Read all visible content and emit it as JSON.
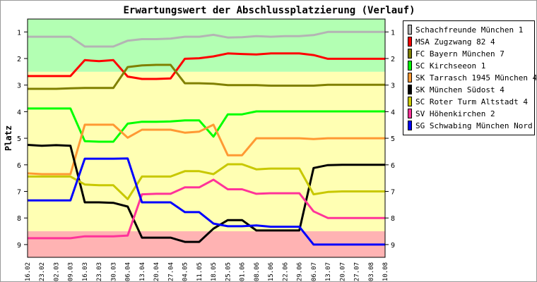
{
  "chart_data": {
    "type": "line",
    "title": "Erwartungswert der Abschlussplatzierung (Verlauf)",
    "xlabel": "",
    "ylabel": "Platz",
    "ylim": [
      1,
      9
    ],
    "y_inverted": true,
    "yticks": [
      1,
      2,
      3,
      4,
      5,
      6,
      7,
      8,
      9
    ],
    "grid": false,
    "legend_position": "right",
    "bands": [
      {
        "from": 0.5,
        "to": 2.5,
        "color": "#b3ffb3"
      },
      {
        "from": 2.5,
        "to": 8.5,
        "color": "#ffffb3"
      },
      {
        "from": 8.5,
        "to": 9.5,
        "color": "#ffb3b3"
      }
    ],
    "categories": [
      "16.02",
      "23.02",
      "02.03",
      "09.03",
      "16.03",
      "23.03",
      "30.03",
      "06.04",
      "13.04",
      "20.04",
      "27.04",
      "04.05",
      "11.05",
      "18.05",
      "25.05",
      "01.06",
      "08.06",
      "15.06",
      "22.06",
      "29.06",
      "06.07",
      "13.07",
      "20.07",
      "27.07",
      "03.08",
      "10.08"
    ],
    "series": [
      {
        "name": "Schachfreunde München 1",
        "color": "#b4b4b4",
        "values": [
          1.18,
          1.18,
          1.18,
          1.18,
          1.55,
          1.55,
          1.55,
          1.33,
          1.27,
          1.27,
          1.25,
          1.18,
          1.18,
          1.11,
          1.21,
          1.2,
          1.16,
          1.18,
          1.16,
          1.16,
          1.12,
          1.0,
          1.0,
          1.0,
          1.0,
          1.0
        ]
      },
      {
        "name": "MSA Zugzwang 82 4",
        "color": "#ff0000",
        "values": [
          2.66,
          2.66,
          2.66,
          2.66,
          2.06,
          2.1,
          2.06,
          2.68,
          2.77,
          2.77,
          2.75,
          2.01,
          1.99,
          1.92,
          1.81,
          1.83,
          1.85,
          1.81,
          1.81,
          1.81,
          1.87,
          2.01,
          2.01,
          2.01,
          2.01,
          2.01
        ]
      },
      {
        "name": "FC Bayern München 7",
        "color": "#808000",
        "values": [
          3.14,
          3.14,
          3.14,
          3.12,
          3.11,
          3.11,
          3.11,
          2.32,
          2.26,
          2.24,
          2.24,
          2.93,
          2.93,
          2.95,
          3.0,
          3.0,
          3.0,
          3.02,
          3.02,
          3.02,
          3.02,
          2.99,
          2.99,
          2.99,
          2.99,
          2.99
        ]
      },
      {
        "name": "SC Kirchseeon 1",
        "color": "#00ff00",
        "values": [
          3.88,
          3.88,
          3.88,
          3.88,
          5.11,
          5.13,
          5.13,
          4.45,
          4.38,
          4.38,
          4.37,
          4.33,
          4.33,
          4.94,
          4.1,
          4.1,
          3.99,
          3.99,
          3.99,
          3.99,
          3.99,
          3.99,
          3.99,
          3.99,
          3.99,
          3.99
        ]
      },
      {
        "name": "SK Tarrasch 1945 München 4",
        "color": "#ff9933",
        "values": [
          6.32,
          6.35,
          6.35,
          6.35,
          4.49,
          4.49,
          4.49,
          4.98,
          4.68,
          4.68,
          4.68,
          4.79,
          4.75,
          4.49,
          5.64,
          5.64,
          5.0,
          5.0,
          5.0,
          5.0,
          5.03,
          5.0,
          5.0,
          5.0,
          5.0,
          5.0
        ]
      },
      {
        "name": "SK München Südost 4",
        "color": "#000000",
        "values": [
          5.25,
          5.28,
          5.26,
          5.28,
          7.41,
          7.41,
          7.43,
          7.57,
          8.74,
          8.74,
          8.74,
          8.9,
          8.9,
          8.4,
          8.08,
          8.08,
          8.47,
          8.47,
          8.47,
          8.47,
          6.12,
          6.01,
          6.0,
          6.0,
          6.0,
          6.0
        ]
      },
      {
        "name": "SC Roter Turm Altstadt 4",
        "color": "#c8c800",
        "values": [
          6.44,
          6.44,
          6.44,
          6.44,
          6.74,
          6.77,
          6.77,
          7.29,
          6.44,
          6.44,
          6.44,
          6.24,
          6.24,
          6.35,
          5.98,
          5.98,
          6.17,
          6.14,
          6.14,
          6.14,
          7.11,
          7.02,
          7.0,
          7.0,
          7.0,
          7.0
        ]
      },
      {
        "name": "SV Höhenkirchen 2",
        "color": "#ff3399",
        "values": [
          8.76,
          8.76,
          8.76,
          8.76,
          8.69,
          8.69,
          8.69,
          8.66,
          7.11,
          7.09,
          7.09,
          6.85,
          6.85,
          6.56,
          6.92,
          6.92,
          7.09,
          7.07,
          7.07,
          7.07,
          7.75,
          8.0,
          8.0,
          8.0,
          8.0,
          8.0
        ]
      },
      {
        "name": "SG Schwabing München Nord 2",
        "color": "#0000ff",
        "values": [
          7.34,
          7.34,
          7.34,
          7.34,
          5.77,
          5.77,
          5.77,
          5.76,
          7.41,
          7.41,
          7.41,
          7.78,
          7.78,
          8.21,
          8.31,
          8.31,
          8.28,
          8.33,
          8.33,
          8.33,
          9.0,
          9.0,
          9.0,
          9.0,
          9.0,
          9.0
        ]
      }
    ]
  }
}
